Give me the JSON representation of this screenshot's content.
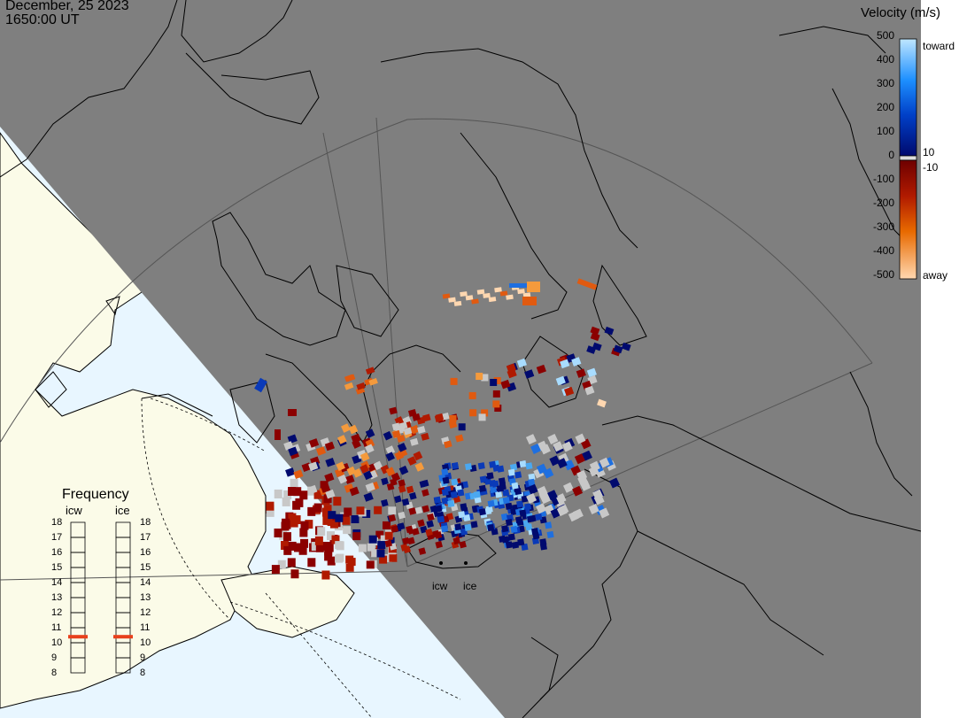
{
  "header": {
    "date": "December, 25 2023",
    "time": "1650:00 UT"
  },
  "colorbar": {
    "title": "Velocity (m/s)",
    "ticks": [
      "500",
      "400",
      "300",
      "200",
      "100",
      "0",
      "-100",
      "-200",
      "-300",
      "-400",
      "-500"
    ],
    "label_toward": "toward",
    "label_away": "away",
    "label_pos10": "10",
    "label_neg10": "-10"
  },
  "frequency_panel": {
    "title": "Frequency",
    "radar_a": "icw",
    "radar_b": "ice",
    "scale": [
      "18",
      "17",
      "16",
      "15",
      "14",
      "13",
      "12",
      "11",
      "10",
      "9",
      "8"
    ],
    "icw_freq_mhz": 10.4,
    "ice_freq_mhz": 10.4
  },
  "radars": [
    {
      "code": "icw"
    },
    {
      "code": "ice"
    }
  ],
  "colors": {
    "night": "#7f7f7f",
    "day_land": "#fbfbe8",
    "day_ocean": "#e8f6ff",
    "ground_scatter": "#c8c8c8",
    "freq_marker": "#e8401c"
  }
}
